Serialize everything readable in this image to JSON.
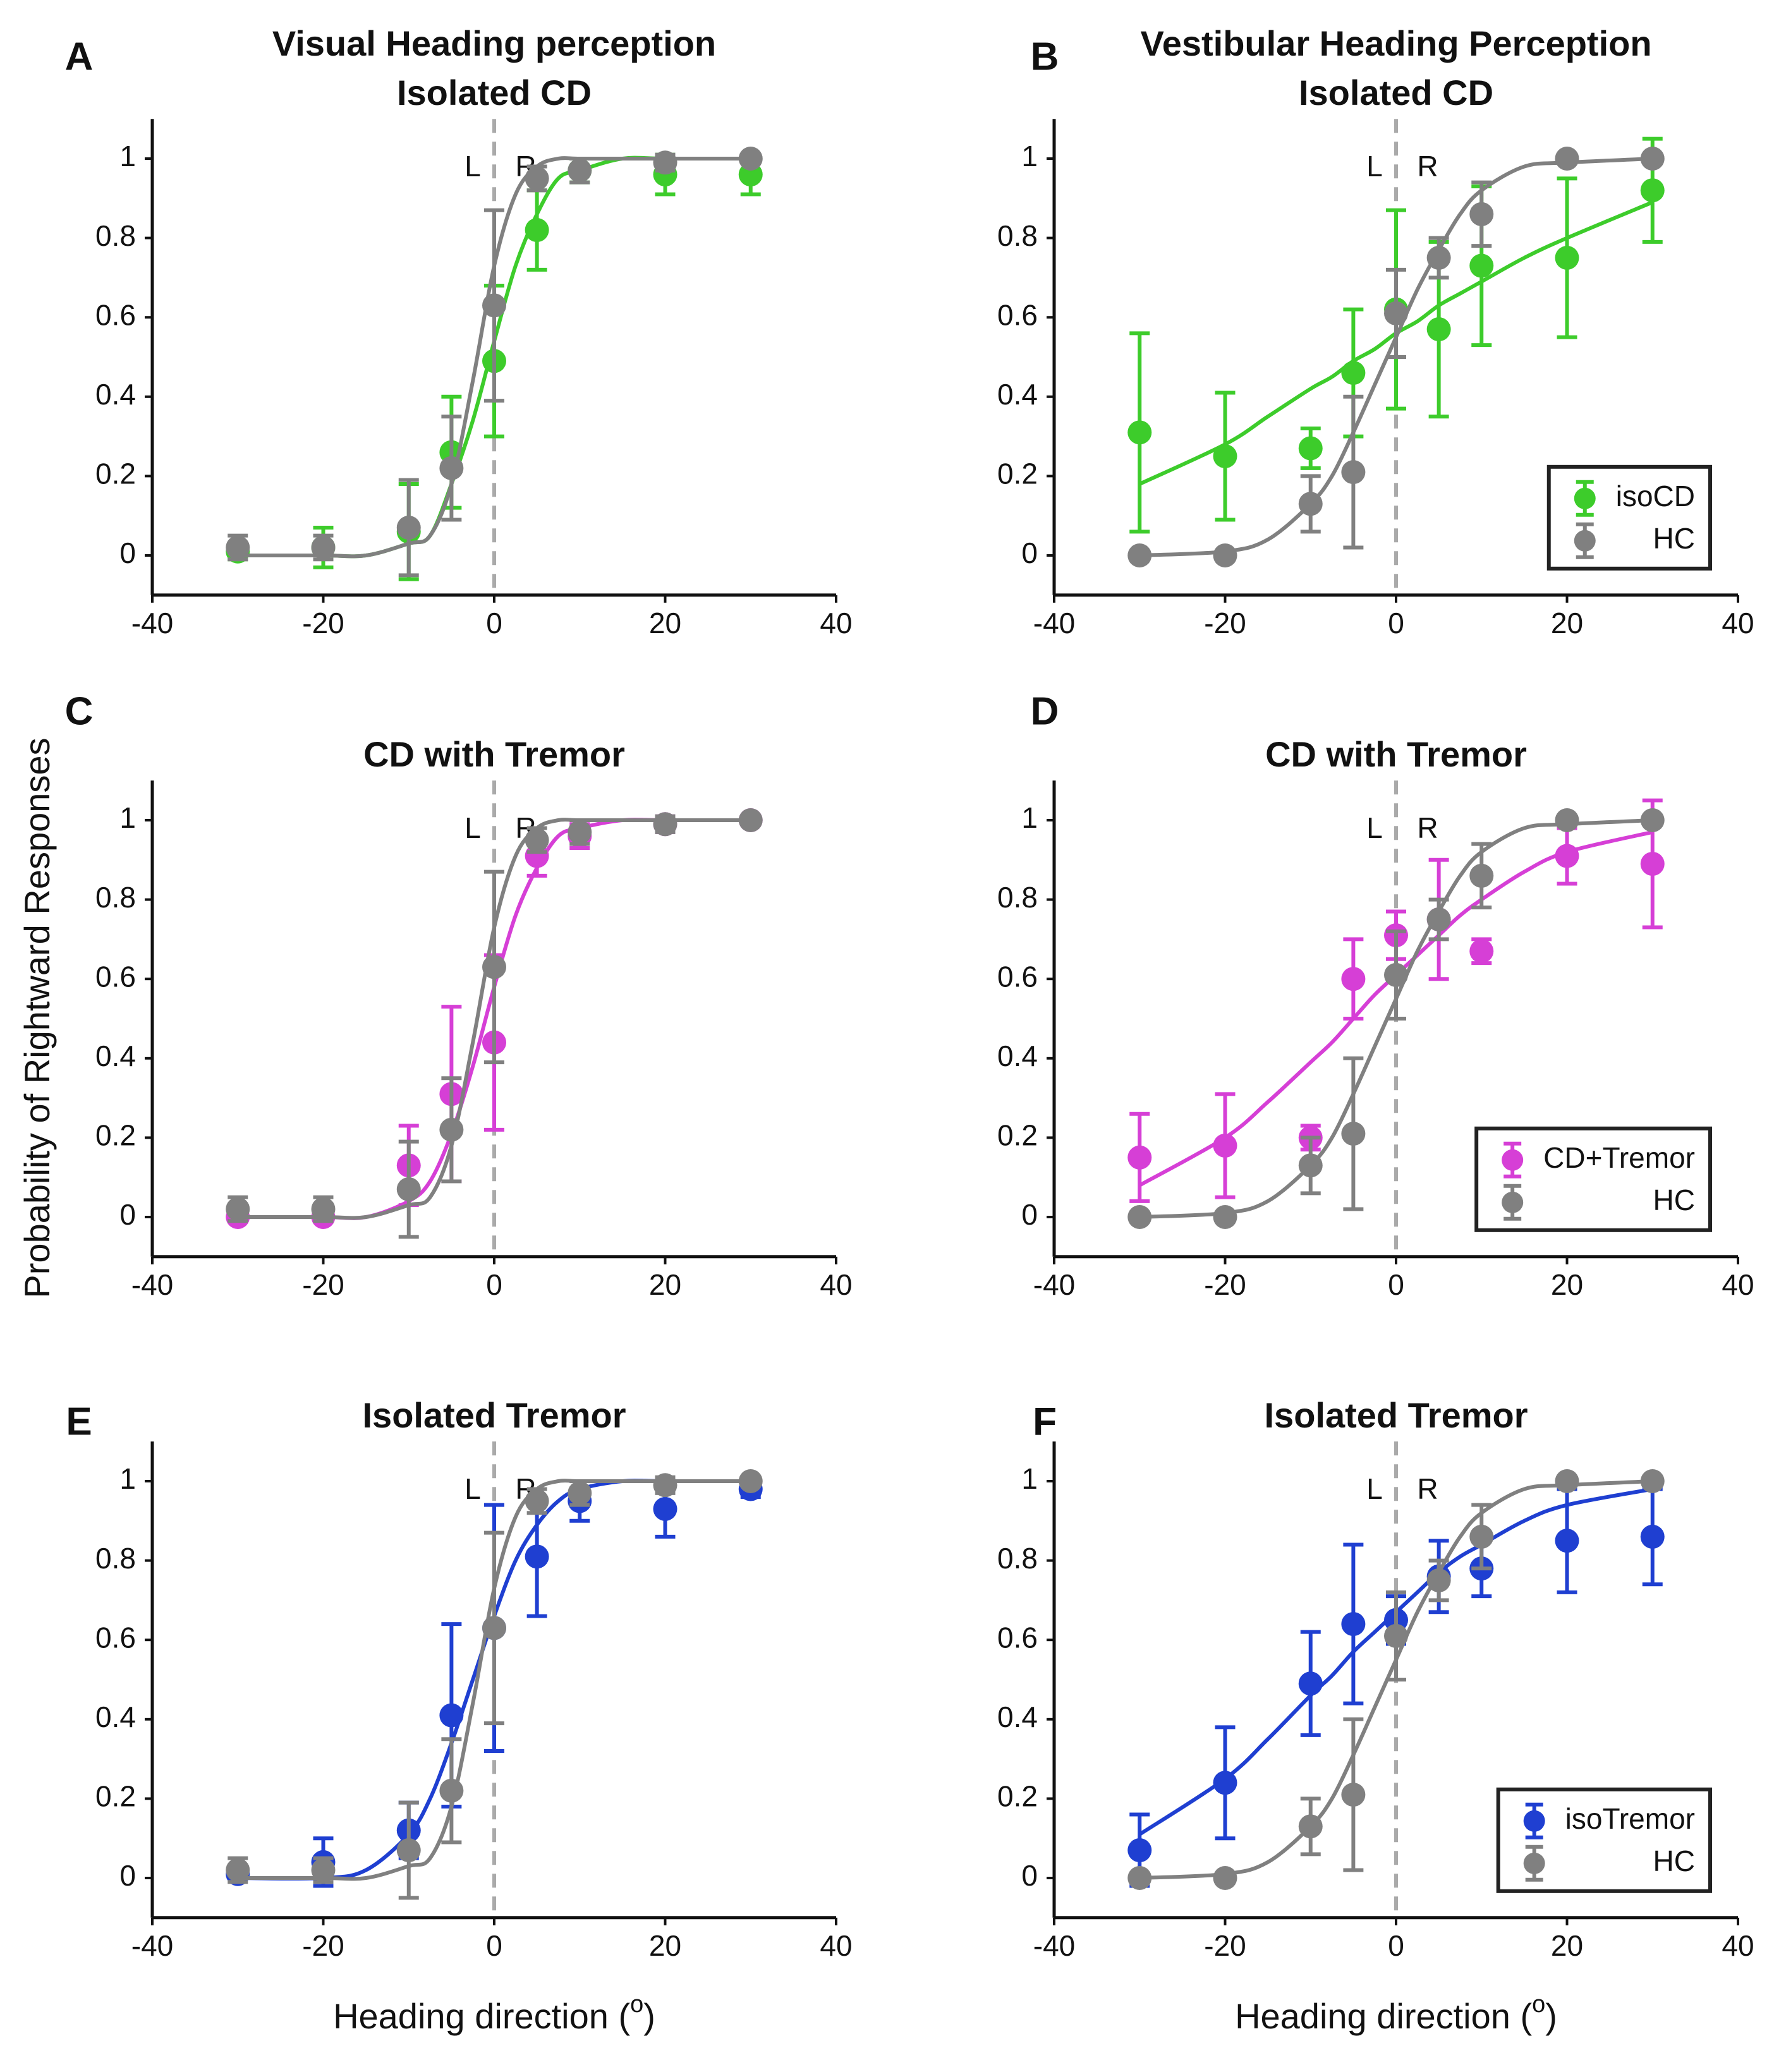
{
  "figure": {
    "ylabel": "Probability of Rightward Responses"
  },
  "chart_data": [
    {
      "type": "scatter",
      "panel_label": "A",
      "title": [
        "Visual Heading perception",
        "Isolated CD"
      ],
      "annotations": [
        "L",
        "R"
      ],
      "reference_x": 0,
      "xlim": [
        -40,
        40
      ],
      "ylim": [
        -0.1,
        1.1
      ],
      "xticks": [
        -40,
        -20,
        0,
        20,
        40
      ],
      "yticks": [
        0,
        0.2,
        0.4,
        0.6,
        0.8,
        1
      ],
      "x": [
        -30,
        -20,
        -10,
        -5,
        0,
        5,
        10,
        20,
        30
      ],
      "series": [
        {
          "color": "#3dcc2b",
          "values": [
            0.01,
            0.02,
            0.06,
            0.26,
            0.49,
            0.82,
            0.97,
            0.96,
            0.96
          ],
          "errors": [
            0.02,
            0.05,
            0.12,
            0.14,
            0.19,
            0.1,
            0.03,
            0.05,
            0.05
          ],
          "fit": {
            "x": [
              -30,
              -20,
              -15,
              -10,
              -7.5,
              -5,
              -2.5,
              0,
              2.5,
              5,
              7.5,
              10,
              15,
              20,
              30
            ],
            "values": [
              0,
              0,
              0,
              0.03,
              0.05,
              0.18,
              0.34,
              0.54,
              0.73,
              0.86,
              0.95,
              0.97,
              1,
              1,
              1
            ]
          }
        },
        {
          "color": "#808080",
          "values": [
            0.02,
            0.02,
            0.07,
            0.22,
            0.63,
            0.95,
            0.97,
            0.99,
            1
          ],
          "errors": [
            0.03,
            0.03,
            0.12,
            0.13,
            0.24,
            0.03,
            0.03,
            0.02,
            0
          ],
          "fit": {
            "x": [
              -30,
              -20,
              -15,
              -10,
              -7.5,
              -5,
              -2.5,
              0,
              2.5,
              5,
              7.5,
              10,
              15,
              20,
              30
            ],
            "values": [
              0,
              0,
              0,
              0.03,
              0.05,
              0.18,
              0.44,
              0.73,
              0.91,
              0.98,
              1,
              1,
              1,
              1,
              1
            ]
          }
        }
      ]
    },
    {
      "type": "scatter",
      "panel_label": "B",
      "title": [
        "Vestibular Heading Perception",
        "Isolated CD"
      ],
      "annotations": [
        "L",
        "R"
      ],
      "reference_x": 0,
      "legend": "lower right",
      "xlim": [
        -40,
        40
      ],
      "ylim": [
        -0.1,
        1.1
      ],
      "xticks": [
        -40,
        -20,
        0,
        20,
        40
      ],
      "yticks": [
        0,
        0.2,
        0.4,
        0.6,
        0.8,
        1
      ],
      "x": [
        -30,
        -20,
        -10,
        -5,
        0,
        5,
        10,
        20,
        30
      ],
      "series": [
        {
          "name": "isoCD",
          "color": "#3dcc2b",
          "values": [
            0.31,
            0.25,
            0.27,
            0.46,
            0.62,
            0.57,
            0.73,
            0.75,
            0.92
          ],
          "errors": [
            0.25,
            0.16,
            0.05,
            0.16,
            0.25,
            0.22,
            0.2,
            0.2,
            0.13
          ],
          "fit": {
            "x": [
              -30,
              -20,
              -15,
              -10,
              -7.5,
              -5,
              -2.5,
              0,
              2.5,
              5,
              7.5,
              10,
              15,
              20,
              30
            ],
            "values": [
              0.18,
              0.28,
              0.35,
              0.42,
              0.45,
              0.49,
              0.52,
              0.56,
              0.59,
              0.63,
              0.66,
              0.69,
              0.75,
              0.8,
              0.89
            ]
          }
        },
        {
          "name": "HC",
          "color": "#808080",
          "values": [
            0,
            0,
            0.13,
            0.21,
            0.61,
            0.75,
            0.86,
            1,
            1
          ],
          "errors": [
            0,
            0,
            0.07,
            0.19,
            0.11,
            0.05,
            0.08,
            0,
            0
          ],
          "fit": {
            "x": [
              -30,
              -20,
              -15,
              -10,
              -7.5,
              -5,
              -2.5,
              0,
              2.5,
              5,
              7.5,
              10,
              15,
              20,
              30
            ],
            "values": [
              0,
              0.01,
              0.04,
              0.13,
              0.2,
              0.31,
              0.43,
              0.55,
              0.67,
              0.77,
              0.86,
              0.92,
              0.98,
              0.99,
              1
            ]
          }
        }
      ]
    },
    {
      "type": "scatter",
      "panel_label": "C",
      "title": [
        "CD with Tremor"
      ],
      "annotations": [
        "L",
        "R"
      ],
      "reference_x": 0,
      "xlim": [
        -40,
        40
      ],
      "ylim": [
        -0.1,
        1.1
      ],
      "xticks": [
        -40,
        -20,
        0,
        20,
        40
      ],
      "yticks": [
        0,
        0.2,
        0.4,
        0.6,
        0.8,
        1
      ],
      "x": [
        -30,
        -20,
        -10,
        -5,
        0,
        5,
        10,
        20,
        30
      ],
      "series": [
        {
          "color": "#d63fd6",
          "values": [
            0,
            0,
            0.13,
            0.31,
            0.44,
            0.91,
            0.96,
            0.99,
            1
          ],
          "errors": [
            0.01,
            0.01,
            0.1,
            0.22,
            0.22,
            0.05,
            0.03,
            0.02,
            0
          ],
          "fit": {
            "x": [
              -30,
              -20,
              -15,
              -10,
              -7.5,
              -5,
              -2.5,
              0,
              2.5,
              5,
              7.5,
              10,
              15,
              20,
              30
            ],
            "values": [
              0,
              0,
              0,
              0.04,
              0.09,
              0.21,
              0.38,
              0.58,
              0.76,
              0.88,
              0.96,
              0.98,
              1,
              1,
              1
            ]
          }
        },
        {
          "color": "#808080",
          "values": [
            0.02,
            0.02,
            0.07,
            0.22,
            0.63,
            0.95,
            0.97,
            0.99,
            1
          ],
          "errors": [
            0.03,
            0.03,
            0.12,
            0.13,
            0.24,
            0.03,
            0.03,
            0.02,
            0
          ],
          "fit": {
            "x": [
              -30,
              -20,
              -15,
              -10,
              -7.5,
              -5,
              -2.5,
              0,
              2.5,
              5,
              7.5,
              10,
              15,
              20,
              30
            ],
            "values": [
              0,
              0,
              0,
              0.03,
              0.05,
              0.18,
              0.44,
              0.73,
              0.91,
              0.98,
              1,
              1,
              1,
              1,
              1
            ]
          }
        }
      ]
    },
    {
      "type": "scatter",
      "panel_label": "D",
      "title": [
        "CD with Tremor"
      ],
      "annotations": [
        "L",
        "R"
      ],
      "reference_x": 0,
      "legend": "lower right",
      "xlim": [
        -40,
        40
      ],
      "ylim": [
        -0.1,
        1.1
      ],
      "xticks": [
        -40,
        -20,
        0,
        20,
        40
      ],
      "yticks": [
        0,
        0.2,
        0.4,
        0.6,
        0.8,
        1
      ],
      "x": [
        -30,
        -20,
        -10,
        -5,
        0,
        5,
        10,
        20,
        30
      ],
      "series": [
        {
          "name": "CD+Tremor",
          "color": "#d63fd6",
          "values": [
            0.15,
            0.18,
            0.2,
            0.6,
            0.71,
            0.75,
            0.67,
            0.91,
            0.89
          ],
          "errors": [
            0.11,
            0.13,
            0.03,
            0.1,
            0.06,
            0.15,
            0.03,
            0.07,
            0.16
          ],
          "fit": {
            "x": [
              -30,
              -20,
              -15,
              -10,
              -7.5,
              -5,
              -2.5,
              0,
              2.5,
              5,
              7.5,
              10,
              15,
              20,
              30
            ],
            "values": [
              0.08,
              0.2,
              0.29,
              0.39,
              0.44,
              0.5,
              0.56,
              0.61,
              0.66,
              0.71,
              0.76,
              0.8,
              0.87,
              0.92,
              0.97
            ]
          }
        },
        {
          "name": "HC",
          "color": "#808080",
          "values": [
            0,
            0,
            0.13,
            0.21,
            0.61,
            0.75,
            0.86,
            1,
            1
          ],
          "errors": [
            0,
            0,
            0.07,
            0.19,
            0.11,
            0.05,
            0.08,
            0,
            0
          ],
          "fit": {
            "x": [
              -30,
              -20,
              -15,
              -10,
              -7.5,
              -5,
              -2.5,
              0,
              2.5,
              5,
              7.5,
              10,
              15,
              20,
              30
            ],
            "values": [
              0,
              0.01,
              0.04,
              0.13,
              0.2,
              0.31,
              0.43,
              0.55,
              0.67,
              0.77,
              0.86,
              0.92,
              0.98,
              0.99,
              1
            ]
          }
        }
      ]
    },
    {
      "type": "scatter",
      "panel_label": "E",
      "title": [
        "Isolated Tremor"
      ],
      "annotations": [
        "L",
        "R"
      ],
      "reference_x": 0,
      "xlabel": [
        "Heading direction (",
        "o",
        ")"
      ],
      "xlim": [
        -40,
        40
      ],
      "ylim": [
        -0.1,
        1.1
      ],
      "xticks": [
        -40,
        -20,
        0,
        20,
        40
      ],
      "yticks": [
        0,
        0.2,
        0.4,
        0.6,
        0.8,
        1
      ],
      "x": [
        -30,
        -20,
        -10,
        -5,
        0,
        5,
        10,
        20,
        30
      ],
      "series": [
        {
          "color": "#1f3fd1",
          "values": [
            0.01,
            0.04,
            0.12,
            0.41,
            0.63,
            0.81,
            0.95,
            0.93,
            0.98
          ],
          "errors": [
            0.01,
            0.06,
            0.07,
            0.23,
            0.31,
            0.15,
            0.05,
            0.07,
            0.02
          ],
          "fit": {
            "x": [
              -30,
              -20,
              -15,
              -10,
              -7.5,
              -5,
              -2.5,
              0,
              2.5,
              5,
              7.5,
              10,
              15,
              20,
              30
            ],
            "values": [
              0,
              0,
              0.02,
              0.11,
              0.2,
              0.34,
              0.5,
              0.66,
              0.8,
              0.89,
              0.95,
              0.98,
              1,
              1,
              1
            ]
          }
        },
        {
          "color": "#808080",
          "values": [
            0.02,
            0.02,
            0.07,
            0.22,
            0.63,
            0.95,
            0.97,
            0.99,
            1
          ],
          "errors": [
            0.03,
            0.03,
            0.12,
            0.13,
            0.24,
            0.03,
            0.03,
            0.02,
            0
          ],
          "fit": {
            "x": [
              -30,
              -20,
              -15,
              -10,
              -7.5,
              -5,
              -2.5,
              0,
              2.5,
              5,
              7.5,
              10,
              15,
              20,
              30
            ],
            "values": [
              0,
              0,
              0,
              0.03,
              0.05,
              0.18,
              0.44,
              0.73,
              0.91,
              0.98,
              1,
              1,
              1,
              1,
              1
            ]
          }
        }
      ]
    },
    {
      "type": "scatter",
      "panel_label": "F",
      "title": [
        "Isolated Tremor"
      ],
      "annotations": [
        "L",
        "R"
      ],
      "reference_x": 0,
      "legend": "lower right",
      "xlabel": [
        "Heading direction (",
        "o",
        ")"
      ],
      "xlim": [
        -40,
        40
      ],
      "ylim": [
        -0.1,
        1.1
      ],
      "xticks": [
        -40,
        -20,
        0,
        20,
        40
      ],
      "yticks": [
        0,
        0.2,
        0.4,
        0.6,
        0.8,
        1
      ],
      "x": [
        -30,
        -20,
        -10,
        -5,
        0,
        5,
        10,
        20,
        30
      ],
      "series": [
        {
          "name": "isoTremor",
          "color": "#1f3fd1",
          "values": [
            0.07,
            0.24,
            0.49,
            0.64,
            0.65,
            0.76,
            0.78,
            0.85,
            0.86
          ],
          "errors": [
            0.09,
            0.14,
            0.13,
            0.2,
            0.06,
            0.09,
            0.07,
            0.13,
            0.12
          ],
          "fit": {
            "x": [
              -30,
              -20,
              -15,
              -10,
              -7.5,
              -5,
              -2.5,
              0,
              2.5,
              5,
              7.5,
              10,
              15,
              20,
              30
            ],
            "values": [
              0.11,
              0.25,
              0.35,
              0.46,
              0.51,
              0.57,
              0.62,
              0.67,
              0.72,
              0.77,
              0.81,
              0.84,
              0.9,
              0.94,
              0.98
            ]
          }
        },
        {
          "name": "HC",
          "color": "#808080",
          "values": [
            0,
            0,
            0.13,
            0.21,
            0.61,
            0.75,
            0.86,
            1,
            1
          ],
          "errors": [
            0,
            0,
            0.07,
            0.19,
            0.11,
            0.05,
            0.08,
            0,
            0
          ],
          "fit": {
            "x": [
              -30,
              -20,
              -15,
              -10,
              -7.5,
              -5,
              -2.5,
              0,
              2.5,
              5,
              7.5,
              10,
              15,
              20,
              30
            ],
            "values": [
              0,
              0.01,
              0.04,
              0.13,
              0.2,
              0.31,
              0.43,
              0.55,
              0.67,
              0.77,
              0.86,
              0.92,
              0.98,
              0.99,
              1
            ]
          }
        }
      ]
    }
  ]
}
